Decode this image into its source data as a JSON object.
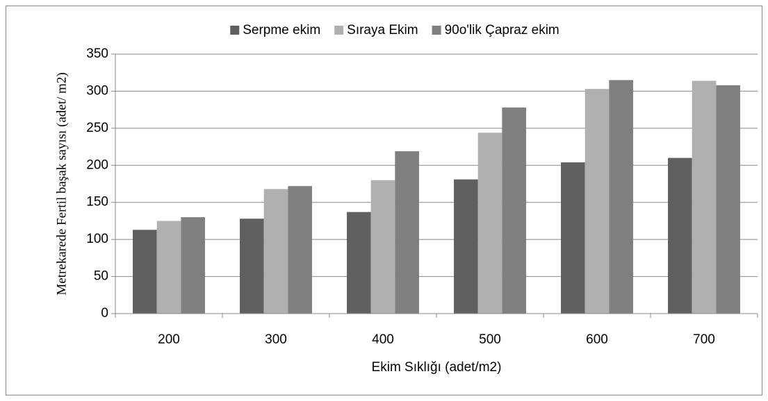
{
  "chart_data": {
    "type": "bar",
    "x_label": "Ekim Sıklığı (adet/m2)",
    "y_label": "Metrekarede Fertil  başak sayısı (adet/ m2)",
    "categories": [
      "200",
      "300",
      "400",
      "500",
      "600",
      "700"
    ],
    "series": [
      {
        "name": "Serpme ekim",
        "color": "#606060",
        "values": [
          113,
          128,
          137,
          181,
          204,
          210
        ]
      },
      {
        "name": "Sıraya Ekim",
        "color": "#b0b0b0",
        "values": [
          125,
          168,
          180,
          244,
          303,
          314
        ]
      },
      {
        "name": "90o'lik Çapraz ekim",
        "color": "#808080",
        "values": [
          130,
          172,
          219,
          278,
          315,
          308
        ]
      }
    ],
    "ylim": [
      0,
      350
    ],
    "yticks": [
      0,
      50,
      100,
      150,
      200,
      250,
      300,
      350
    ],
    "grid": true,
    "legend": "top"
  }
}
